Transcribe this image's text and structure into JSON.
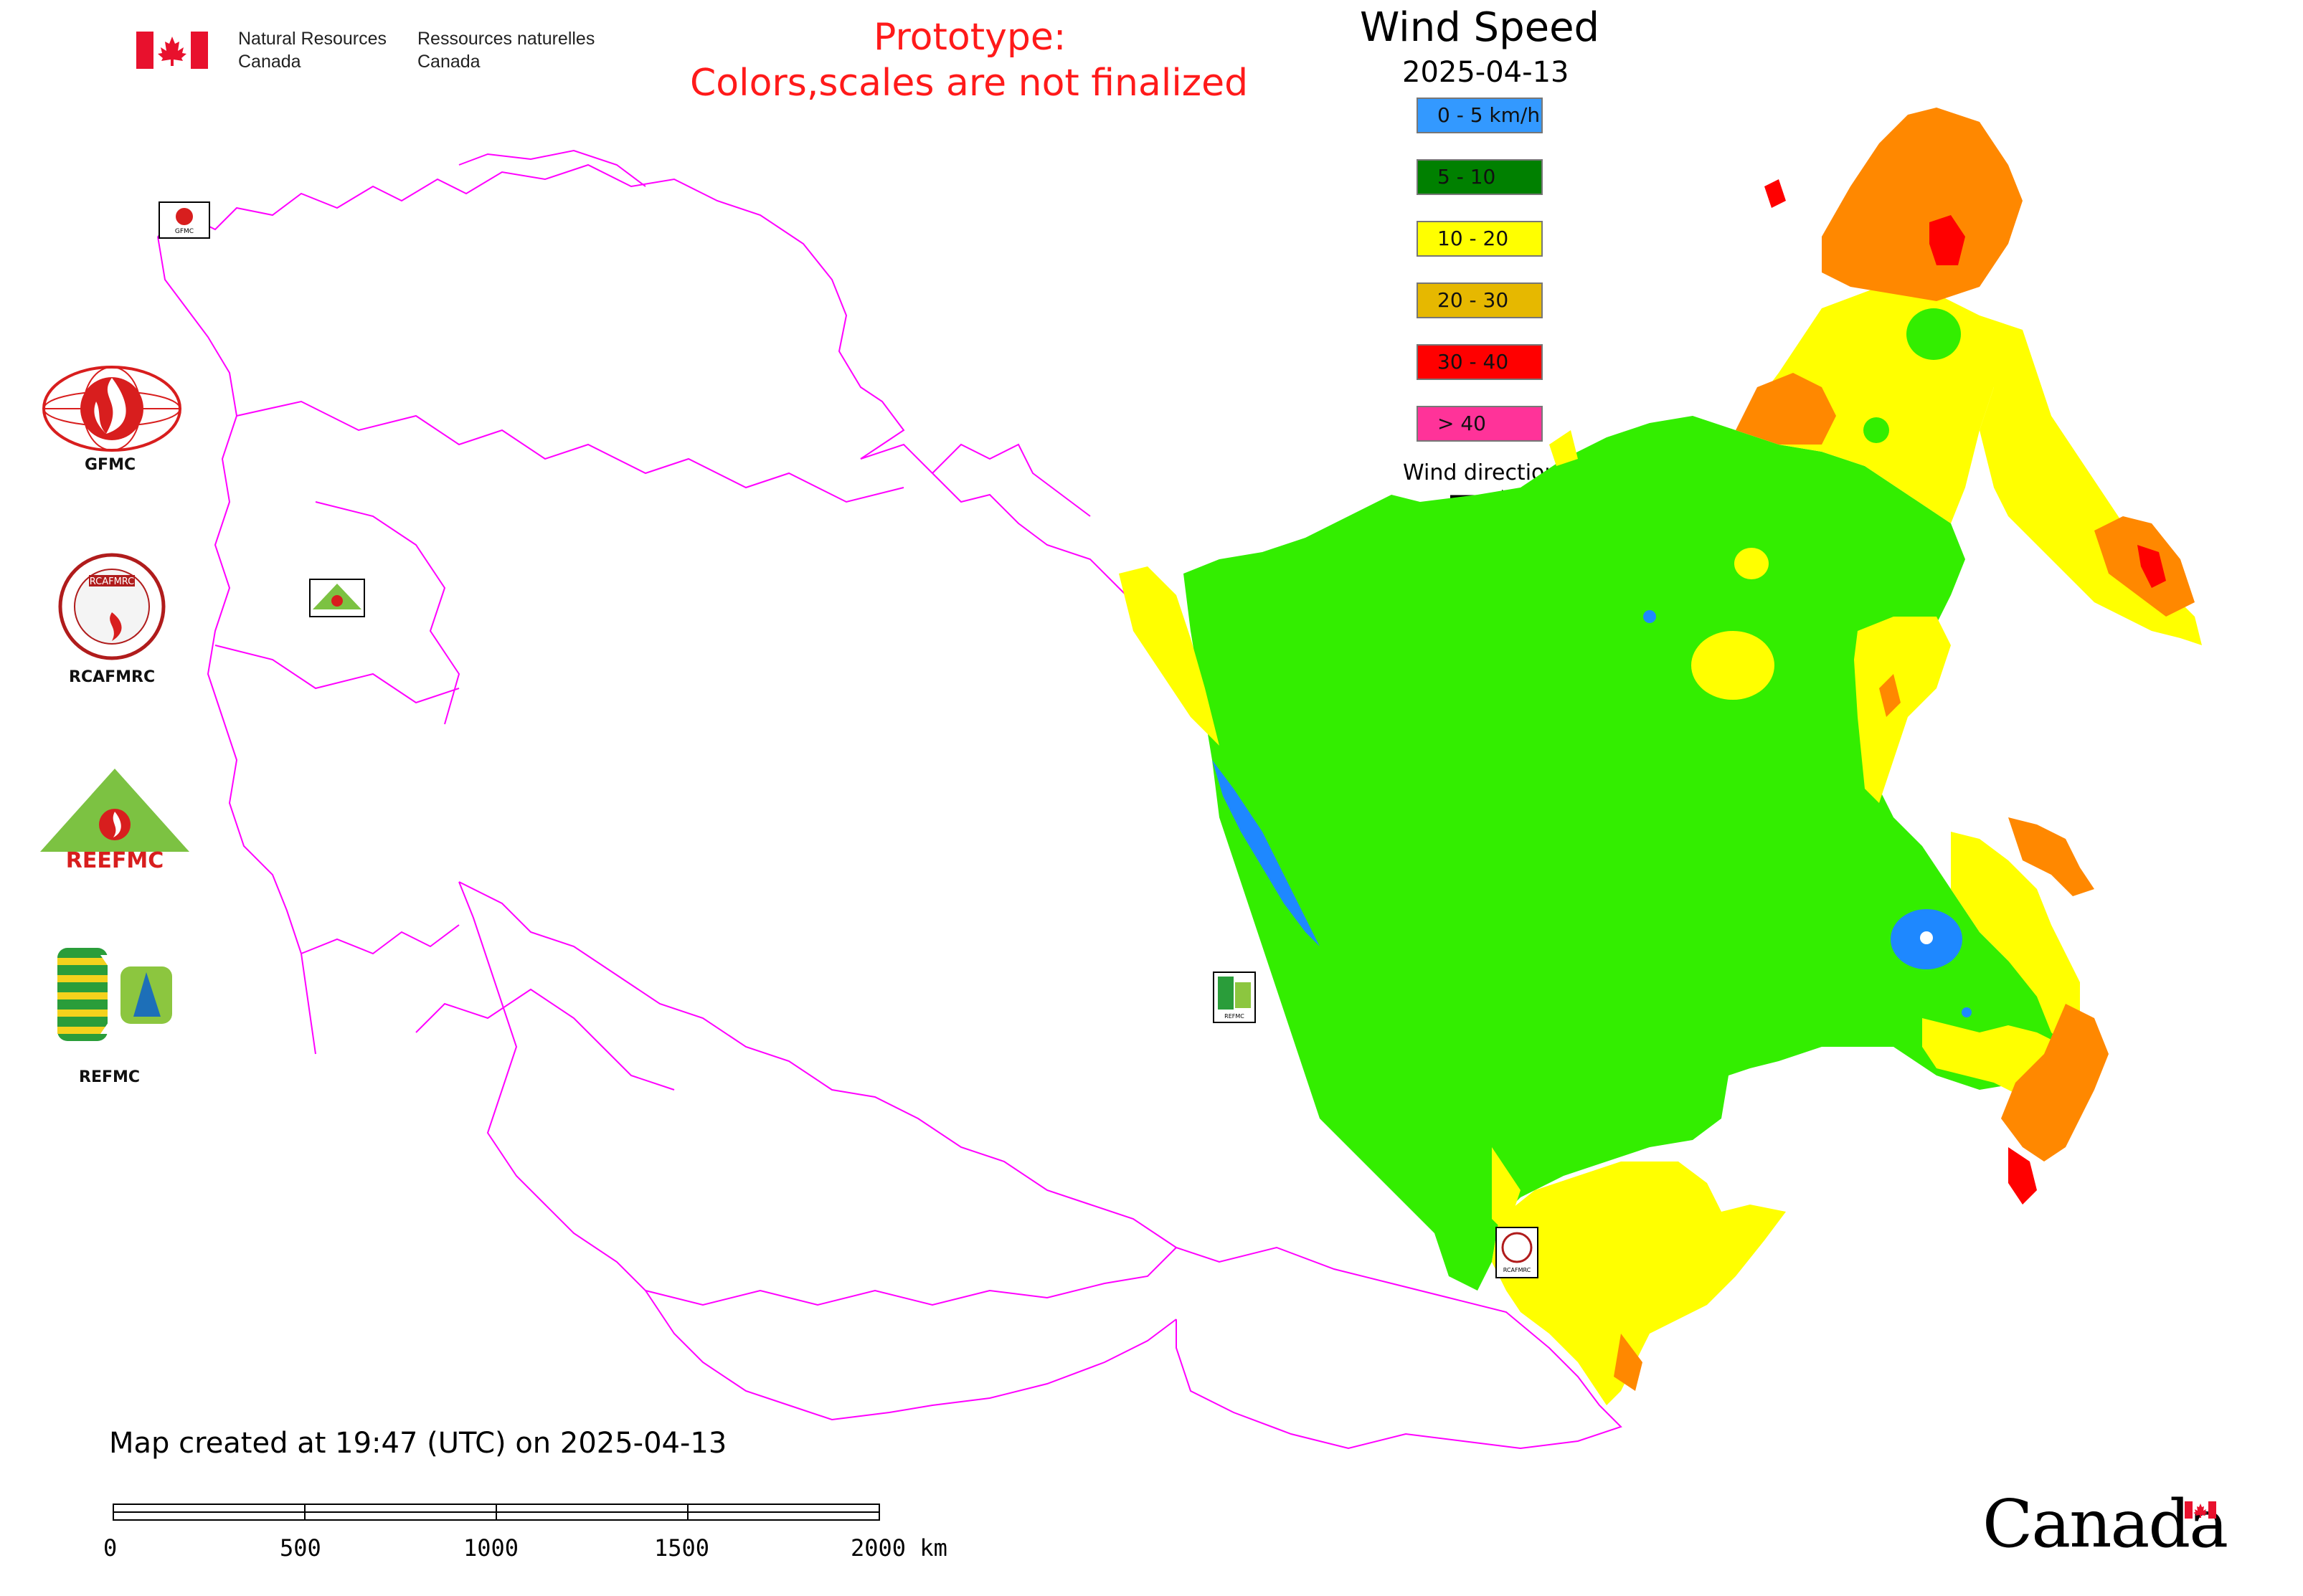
{
  "header": {
    "agency_en": "Natural Resources",
    "agency_en_2": "Canada",
    "agency_fr": "Ressources naturelles",
    "agency_fr_2": "Canada",
    "prototype_line1": "Prototype:",
    "prototype_line2": "Colors,scales are not finalized",
    "prototype_color": "#ff0000"
  },
  "legend": {
    "title": "Wind Speed",
    "date": "2025-04-13",
    "items": [
      {
        "label": "0 - 5 km/h",
        "color": "#3399ff"
      },
      {
        "label": "5 - 10",
        "color": "#008000"
      },
      {
        "label": "10 - 20",
        "color": "#ffff00"
      },
      {
        "label": "20 - 30",
        "color": "#e6b800"
      },
      {
        "label": "30 - 40",
        "color": "#ff0000"
      },
      {
        "label": "> 40",
        "color": "#ff3399"
      }
    ],
    "wind_direction_label": "Wind direction"
  },
  "logos": [
    {
      "name": "GFMC",
      "icon": "gfmc-logo"
    },
    {
      "name": "RCAFMRC",
      "icon": "rcafmrc-logo"
    },
    {
      "name": "REEFMC",
      "icon": "reefmc-logo"
    },
    {
      "name": "REFMC",
      "icon": "refmc-logo"
    }
  ],
  "logo_lettering": {
    "gfmc_small": "GFMC",
    "rcafmrc_small": "RCAFMRC",
    "reefmc_word": "REEFMC",
    "refmc_small": "REFMC"
  },
  "map": {
    "created_text": "Map created at 19:47 (UTC) on 2025-04-13",
    "boundary_color": "#ff00ff",
    "zone_colors": {
      "green": "#33ee00",
      "yellow": "#ffff00",
      "orange": "#ff8800",
      "red": "#ff0000",
      "blue": "#1e88ff"
    }
  },
  "scale_bar": {
    "ticks": [
      "0",
      "500",
      "1000",
      "1500",
      "2000 km"
    ]
  },
  "footer": {
    "wordmark": "Canada"
  }
}
